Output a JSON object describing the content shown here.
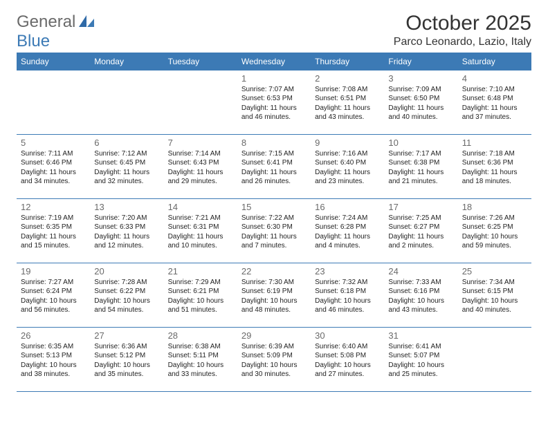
{
  "brand": {
    "g": "General",
    "b": "Blue"
  },
  "title": "October 2025",
  "location": "Parco Leonardo, Lazio, Italy",
  "header_bg": "#3c7ab5",
  "header_fg": "#ffffff",
  "rule_color": "#3c7ab5",
  "daynum_color": "#6a6a6a",
  "text_color": "#222222",
  "day_headers": [
    "Sunday",
    "Monday",
    "Tuesday",
    "Wednesday",
    "Thursday",
    "Friday",
    "Saturday"
  ],
  "weeks": [
    [
      {
        "n": "",
        "lines": [
          "",
          "",
          "",
          ""
        ]
      },
      {
        "n": "",
        "lines": [
          "",
          "",
          "",
          ""
        ]
      },
      {
        "n": "",
        "lines": [
          "",
          "",
          "",
          ""
        ]
      },
      {
        "n": "1",
        "lines": [
          "Sunrise: 7:07 AM",
          "Sunset: 6:53 PM",
          "Daylight: 11 hours",
          "and 46 minutes."
        ]
      },
      {
        "n": "2",
        "lines": [
          "Sunrise: 7:08 AM",
          "Sunset: 6:51 PM",
          "Daylight: 11 hours",
          "and 43 minutes."
        ]
      },
      {
        "n": "3",
        "lines": [
          "Sunrise: 7:09 AM",
          "Sunset: 6:50 PM",
          "Daylight: 11 hours",
          "and 40 minutes."
        ]
      },
      {
        "n": "4",
        "lines": [
          "Sunrise: 7:10 AM",
          "Sunset: 6:48 PM",
          "Daylight: 11 hours",
          "and 37 minutes."
        ]
      }
    ],
    [
      {
        "n": "5",
        "lines": [
          "Sunrise: 7:11 AM",
          "Sunset: 6:46 PM",
          "Daylight: 11 hours",
          "and 34 minutes."
        ]
      },
      {
        "n": "6",
        "lines": [
          "Sunrise: 7:12 AM",
          "Sunset: 6:45 PM",
          "Daylight: 11 hours",
          "and 32 minutes."
        ]
      },
      {
        "n": "7",
        "lines": [
          "Sunrise: 7:14 AM",
          "Sunset: 6:43 PM",
          "Daylight: 11 hours",
          "and 29 minutes."
        ]
      },
      {
        "n": "8",
        "lines": [
          "Sunrise: 7:15 AM",
          "Sunset: 6:41 PM",
          "Daylight: 11 hours",
          "and 26 minutes."
        ]
      },
      {
        "n": "9",
        "lines": [
          "Sunrise: 7:16 AM",
          "Sunset: 6:40 PM",
          "Daylight: 11 hours",
          "and 23 minutes."
        ]
      },
      {
        "n": "10",
        "lines": [
          "Sunrise: 7:17 AM",
          "Sunset: 6:38 PM",
          "Daylight: 11 hours",
          "and 21 minutes."
        ]
      },
      {
        "n": "11",
        "lines": [
          "Sunrise: 7:18 AM",
          "Sunset: 6:36 PM",
          "Daylight: 11 hours",
          "and 18 minutes."
        ]
      }
    ],
    [
      {
        "n": "12",
        "lines": [
          "Sunrise: 7:19 AM",
          "Sunset: 6:35 PM",
          "Daylight: 11 hours",
          "and 15 minutes."
        ]
      },
      {
        "n": "13",
        "lines": [
          "Sunrise: 7:20 AM",
          "Sunset: 6:33 PM",
          "Daylight: 11 hours",
          "and 12 minutes."
        ]
      },
      {
        "n": "14",
        "lines": [
          "Sunrise: 7:21 AM",
          "Sunset: 6:31 PM",
          "Daylight: 11 hours",
          "and 10 minutes."
        ]
      },
      {
        "n": "15",
        "lines": [
          "Sunrise: 7:22 AM",
          "Sunset: 6:30 PM",
          "Daylight: 11 hours",
          "and 7 minutes."
        ]
      },
      {
        "n": "16",
        "lines": [
          "Sunrise: 7:24 AM",
          "Sunset: 6:28 PM",
          "Daylight: 11 hours",
          "and 4 minutes."
        ]
      },
      {
        "n": "17",
        "lines": [
          "Sunrise: 7:25 AM",
          "Sunset: 6:27 PM",
          "Daylight: 11 hours",
          "and 2 minutes."
        ]
      },
      {
        "n": "18",
        "lines": [
          "Sunrise: 7:26 AM",
          "Sunset: 6:25 PM",
          "Daylight: 10 hours",
          "and 59 minutes."
        ]
      }
    ],
    [
      {
        "n": "19",
        "lines": [
          "Sunrise: 7:27 AM",
          "Sunset: 6:24 PM",
          "Daylight: 10 hours",
          "and 56 minutes."
        ]
      },
      {
        "n": "20",
        "lines": [
          "Sunrise: 7:28 AM",
          "Sunset: 6:22 PM",
          "Daylight: 10 hours",
          "and 54 minutes."
        ]
      },
      {
        "n": "21",
        "lines": [
          "Sunrise: 7:29 AM",
          "Sunset: 6:21 PM",
          "Daylight: 10 hours",
          "and 51 minutes."
        ]
      },
      {
        "n": "22",
        "lines": [
          "Sunrise: 7:30 AM",
          "Sunset: 6:19 PM",
          "Daylight: 10 hours",
          "and 48 minutes."
        ]
      },
      {
        "n": "23",
        "lines": [
          "Sunrise: 7:32 AM",
          "Sunset: 6:18 PM",
          "Daylight: 10 hours",
          "and 46 minutes."
        ]
      },
      {
        "n": "24",
        "lines": [
          "Sunrise: 7:33 AM",
          "Sunset: 6:16 PM",
          "Daylight: 10 hours",
          "and 43 minutes."
        ]
      },
      {
        "n": "25",
        "lines": [
          "Sunrise: 7:34 AM",
          "Sunset: 6:15 PM",
          "Daylight: 10 hours",
          "and 40 minutes."
        ]
      }
    ],
    [
      {
        "n": "26",
        "lines": [
          "Sunrise: 6:35 AM",
          "Sunset: 5:13 PM",
          "Daylight: 10 hours",
          "and 38 minutes."
        ]
      },
      {
        "n": "27",
        "lines": [
          "Sunrise: 6:36 AM",
          "Sunset: 5:12 PM",
          "Daylight: 10 hours",
          "and 35 minutes."
        ]
      },
      {
        "n": "28",
        "lines": [
          "Sunrise: 6:38 AM",
          "Sunset: 5:11 PM",
          "Daylight: 10 hours",
          "and 33 minutes."
        ]
      },
      {
        "n": "29",
        "lines": [
          "Sunrise: 6:39 AM",
          "Sunset: 5:09 PM",
          "Daylight: 10 hours",
          "and 30 minutes."
        ]
      },
      {
        "n": "30",
        "lines": [
          "Sunrise: 6:40 AM",
          "Sunset: 5:08 PM",
          "Daylight: 10 hours",
          "and 27 minutes."
        ]
      },
      {
        "n": "31",
        "lines": [
          "Sunrise: 6:41 AM",
          "Sunset: 5:07 PM",
          "Daylight: 10 hours",
          "and 25 minutes."
        ]
      },
      {
        "n": "",
        "lines": [
          "",
          "",
          "",
          ""
        ]
      }
    ]
  ]
}
